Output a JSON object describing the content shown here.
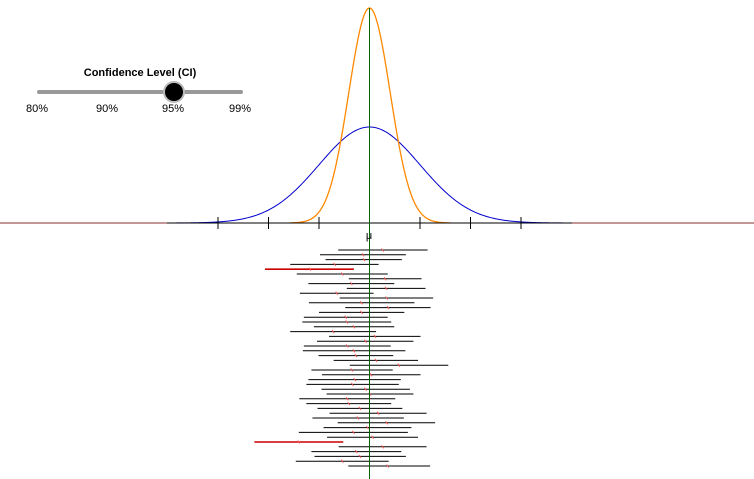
{
  "slider": {
    "title": "Confidence Level (CI)",
    "ticks": [
      "80%",
      "90%",
      "95%",
      "99%"
    ],
    "selected": "95%"
  },
  "mu_label": "μ",
  "colors": {
    "population_curve": "#0000cc",
    "sampling_curve": "#ff8800",
    "mean_line": "#006600",
    "axis": "#8b2c2c",
    "interval_hit": "#000000",
    "interval_miss": "#cc0000",
    "sample_mean_marker": "#ff5555"
  },
  "intervals": [
    {
      "lo": -0.62,
      "hi": 1.15,
      "mean": 0.26,
      "miss": false
    },
    {
      "lo": -0.98,
      "hi": 0.72,
      "mean": -0.13,
      "miss": false
    },
    {
      "lo": -0.87,
      "hi": 0.64,
      "mean": -0.11,
      "miss": false
    },
    {
      "lo": -1.57,
      "hi": 0.18,
      "mean": -0.69,
      "miss": false
    },
    {
      "lo": -2.07,
      "hi": -0.31,
      "mean": -1.18,
      "miss": true
    },
    {
      "lo": -1.44,
      "hi": 0.36,
      "mean": -0.54,
      "miss": false
    },
    {
      "lo": -0.41,
      "hi": 1.03,
      "mean": 0.31,
      "miss": false
    },
    {
      "lo": -1.21,
      "hi": 0.49,
      "mean": -0.36,
      "miss": false
    },
    {
      "lo": -0.45,
      "hi": 1.11,
      "mean": 0.33,
      "miss": false
    },
    {
      "lo": -1.38,
      "hi": 0.08,
      "mean": -0.65,
      "miss": false
    },
    {
      "lo": -0.59,
      "hi": 1.26,
      "mean": 0.34,
      "miss": false
    },
    {
      "lo": -1.2,
      "hi": 0.89,
      "mean": -0.16,
      "miss": false
    },
    {
      "lo": -0.48,
      "hi": 1.21,
      "mean": 0.37,
      "miss": false
    },
    {
      "lo": -1.0,
      "hi": 0.69,
      "mean": -0.16,
      "miss": false
    },
    {
      "lo": -1.3,
      "hi": 0.36,
      "mean": -0.47,
      "miss": false
    },
    {
      "lo": -1.33,
      "hi": 0.43,
      "mean": -0.45,
      "miss": false
    },
    {
      "lo": -1.1,
      "hi": 0.49,
      "mean": -0.31,
      "miss": false
    },
    {
      "lo": -1.57,
      "hi": 0.13,
      "mean": -0.72,
      "miss": false
    },
    {
      "lo": -0.8,
      "hi": 1.01,
      "mean": 0.11,
      "miss": false
    },
    {
      "lo": -1.04,
      "hi": 0.87,
      "mean": -0.08,
      "miss": false
    },
    {
      "lo": -1.3,
      "hi": 0.42,
      "mean": -0.44,
      "miss": false
    },
    {
      "lo": -1.32,
      "hi": 0.71,
      "mean": -0.31,
      "miss": false
    },
    {
      "lo": -1.01,
      "hi": 0.47,
      "mean": -0.27,
      "miss": false
    },
    {
      "lo": -0.71,
      "hi": 0.96,
      "mean": 0.13,
      "miss": false
    },
    {
      "lo": -0.39,
      "hi": 1.56,
      "mean": 0.58,
      "miss": false
    },
    {
      "lo": -1.15,
      "hi": 0.46,
      "mean": -0.35,
      "miss": false
    },
    {
      "lo": -0.94,
      "hi": 1.01,
      "mean": 0.03,
      "miss": false
    },
    {
      "lo": -1.21,
      "hi": 0.62,
      "mean": -0.29,
      "miss": false
    },
    {
      "lo": -1.25,
      "hi": 0.58,
      "mean": -0.34,
      "miss": false
    },
    {
      "lo": -0.95,
      "hi": 0.8,
      "mean": -0.08,
      "miss": false
    },
    {
      "lo": -0.85,
      "hi": 0.87,
      "mean": 0.01,
      "miss": false
    },
    {
      "lo": -1.39,
      "hi": 0.51,
      "mean": -0.44,
      "miss": false
    },
    {
      "lo": -1.25,
      "hi": 0.43,
      "mean": -0.41,
      "miss": false
    },
    {
      "lo": -1.03,
      "hi": 0.65,
      "mean": -0.19,
      "miss": false
    },
    {
      "lo": -0.79,
      "hi": 1.13,
      "mean": 0.17,
      "miss": false
    },
    {
      "lo": -1.13,
      "hi": 0.68,
      "mean": -0.23,
      "miss": false
    },
    {
      "lo": -0.63,
      "hi": 1.3,
      "mean": 0.34,
      "miss": false
    },
    {
      "lo": -0.91,
      "hi": 0.83,
      "mean": -0.04,
      "miss": false
    },
    {
      "lo": -1.4,
      "hi": 0.76,
      "mean": -0.32,
      "miss": false
    },
    {
      "lo": -0.84,
      "hi": 0.96,
      "mean": 0.06,
      "miss": false
    },
    {
      "lo": -2.28,
      "hi": -0.52,
      "mean": -1.4,
      "miss": true
    },
    {
      "lo": -0.61,
      "hi": 1.13,
      "mean": 0.26,
      "miss": false
    },
    {
      "lo": -1.15,
      "hi": 0.63,
      "mean": -0.26,
      "miss": false
    },
    {
      "lo": -1.09,
      "hi": 0.72,
      "mean": -0.19,
      "miss": false
    },
    {
      "lo": -1.46,
      "hi": 0.38,
      "mean": -0.54,
      "miss": false
    },
    {
      "lo": -0.42,
      "hi": 1.2,
      "mean": 0.36,
      "miss": false
    }
  ]
}
